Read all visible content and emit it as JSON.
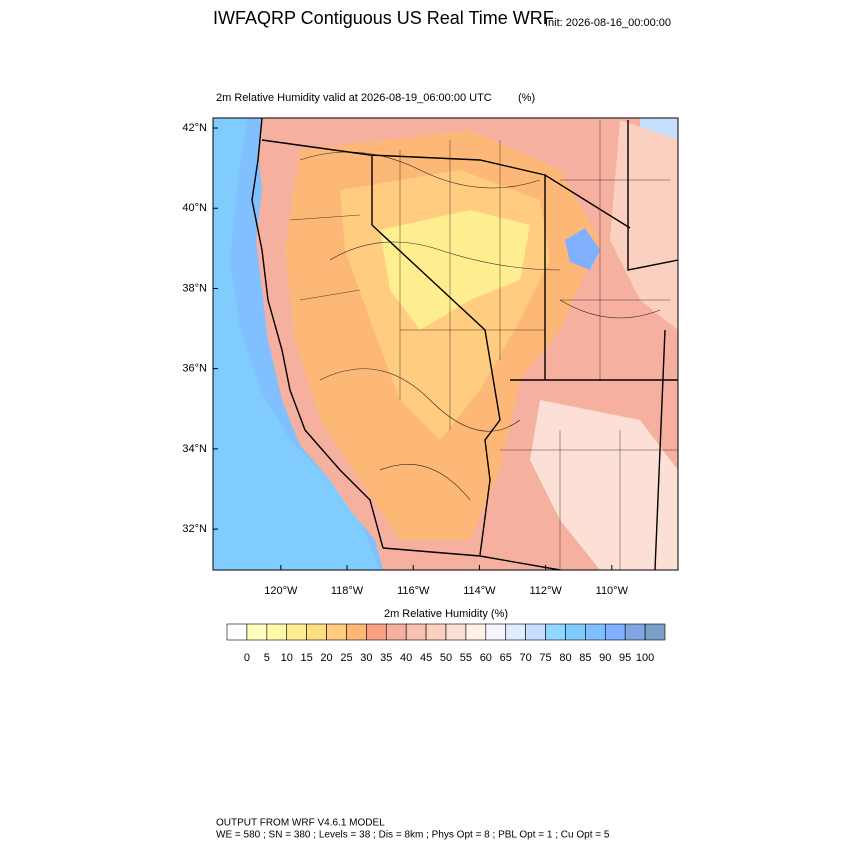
{
  "title": "IWFAQRP Contiguous US Real Time WRF",
  "init": "Init: 2026-08-16_00:00:00",
  "subtitle": "2m Relative Humidity valid at 2026-08-19_06:00:00 UTC",
  "units": "(%)",
  "map": {
    "xlim": [
      -122.05,
      -108
    ],
    "ylim": [
      30.98,
      42.25
    ],
    "xticks": [
      {
        "value": -120,
        "label": "120°W"
      },
      {
        "value": -118,
        "label": "118°W"
      },
      {
        "value": -116,
        "label": "116°W"
      },
      {
        "value": -114,
        "label": "114°W"
      },
      {
        "value": -112,
        "label": "112°W"
      },
      {
        "value": -110,
        "label": "110°W"
      }
    ],
    "yticks": [
      {
        "value": 32,
        "label": "32°N"
      },
      {
        "value": 34,
        "label": "34°N"
      },
      {
        "value": 36,
        "label": "36°N"
      },
      {
        "value": 38,
        "label": "38°N"
      },
      {
        "value": 40,
        "label": "40°N"
      },
      {
        "value": 42,
        "label": "42°N"
      }
    ]
  },
  "colorbar": {
    "title": "2m Relative Humidity  (%)",
    "levels": [
      0,
      5,
      10,
      15,
      20,
      25,
      30,
      35,
      40,
      45,
      50,
      55,
      60,
      65,
      70,
      75,
      80,
      85,
      90,
      95,
      100
    ],
    "colors": [
      "#ffffff",
      "#ffffc0",
      "#fff8a8",
      "#ffee90",
      "#ffe080",
      "#ffcc80",
      "#fdb878",
      "#f9a080",
      "#f5b0a0",
      "#f8c0b0",
      "#fbd0c0",
      "#fde0d5",
      "#fff0ea",
      "#f5f5ff",
      "#e0ecff",
      "#c8e0ff",
      "#90d8ff",
      "#80ccff",
      "#80c0ff",
      "#80b0ff",
      "#80a8e0",
      "#78a0c8"
    ]
  },
  "footer": [
    "OUTPUT FROM WRF V4.6.1 MODEL",
    "WE = 580 ; SN = 380 ; Levels = 38 ; Dis = 8km ; Phys Opt = 8 ; PBL Opt = 1 ; Cu Opt = 5"
  ]
}
